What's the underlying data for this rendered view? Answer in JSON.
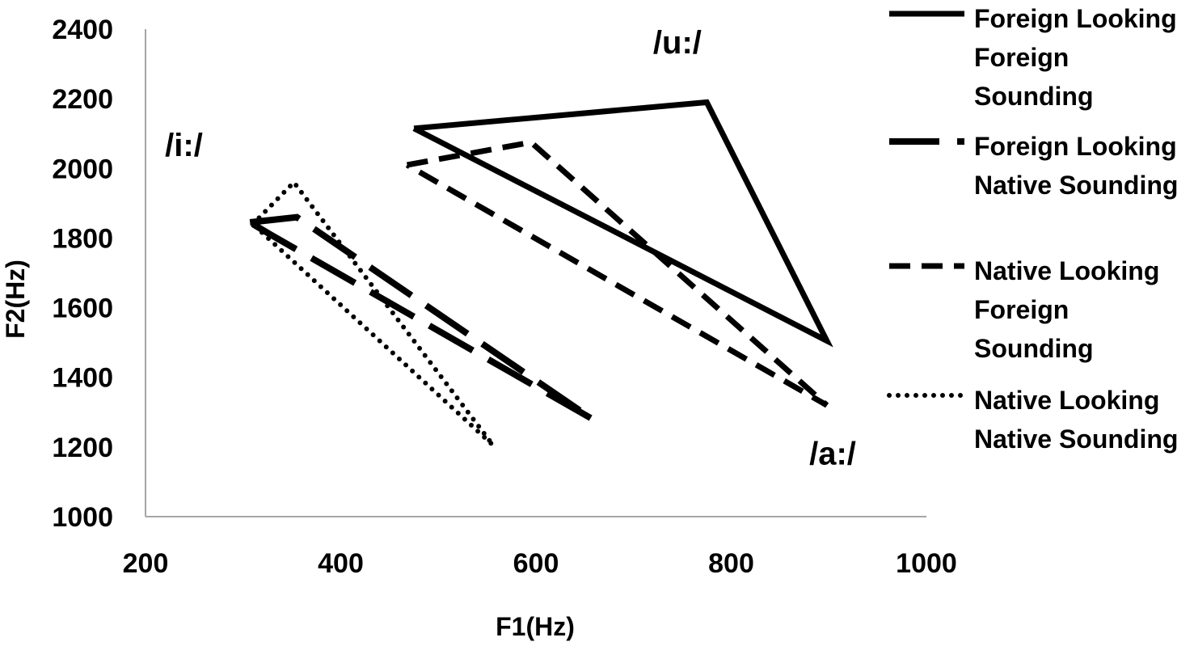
{
  "chart_data": {
    "type": "line",
    "title": "",
    "xlabel": "F1(Hz)",
    "ylabel": "F2(Hz)",
    "xlim": [
      200,
      1000
    ],
    "ylim": [
      1000,
      2400
    ],
    "xticks": [
      200,
      400,
      600,
      800,
      1000
    ],
    "yticks": [
      1000,
      1200,
      1400,
      1600,
      1800,
      2000,
      2200,
      2400
    ],
    "grid": false,
    "legend_position": "right",
    "annotations": [
      {
        "text": "/u:/",
        "x": 720,
        "y": 2330
      },
      {
        "text": "/i:/",
        "x": 220,
        "y": 2035
      },
      {
        "text": "/a:/",
        "x": 880,
        "y": 1150
      }
    ],
    "series": [
      {
        "name": "Foreign Looking Foreign Sounding",
        "legend_lines": [
          "Foreign Looking",
          "Foreign",
          "Sounding"
        ],
        "style": "solid",
        "points": [
          {
            "x": 475,
            "y": 2115
          },
          {
            "x": 775,
            "y": 2190
          },
          {
            "x": 898,
            "y": 1505
          },
          {
            "x": 475,
            "y": 2115
          }
        ]
      },
      {
        "name": "Foreign Looking Native Sounding",
        "legend_lines": [
          "Foreign Looking",
          "Native Sounding"
        ],
        "style": "longdash",
        "points": [
          {
            "x": 307,
            "y": 1845
          },
          {
            "x": 355,
            "y": 1860
          },
          {
            "x": 658,
            "y": 1280
          },
          {
            "x": 328,
            "y": 1810
          },
          {
            "x": 307,
            "y": 1845
          }
        ]
      },
      {
        "name": "Native Looking Foreign Sounding",
        "legend_lines": [
          "Native Looking",
          "Foreign",
          "Sounding"
        ],
        "style": "dash",
        "points": [
          {
            "x": 468,
            "y": 2010
          },
          {
            "x": 595,
            "y": 2075
          },
          {
            "x": 898,
            "y": 1320
          },
          {
            "x": 468,
            "y": 2010
          }
        ]
      },
      {
        "name": "Native Looking Native Sounding",
        "legend_lines": [
          "Native Looking",
          "Native Sounding"
        ],
        "style": "dot",
        "points": [
          {
            "x": 310,
            "y": 1840
          },
          {
            "x": 352,
            "y": 1960
          },
          {
            "x": 556,
            "y": 1205
          },
          {
            "x": 310,
            "y": 1840
          }
        ]
      }
    ]
  }
}
